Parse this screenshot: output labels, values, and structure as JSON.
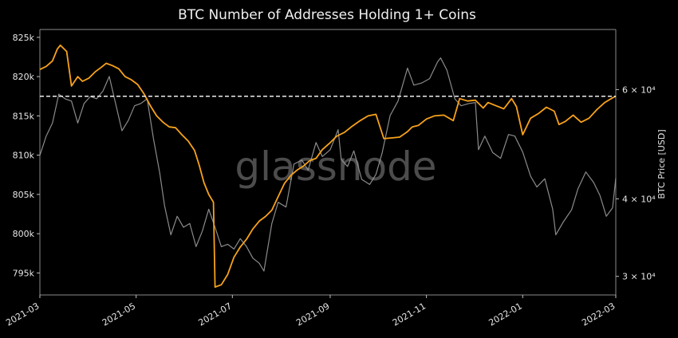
{
  "chart_data": {
    "type": "line",
    "title": "BTC Number of Addresses Holding 1+ Coins",
    "watermark": "glassnode",
    "xlabel": "",
    "ylabel_left": "",
    "ylabel_right": "BTC Price [USD]",
    "x_tick_labels": [
      "2021-03",
      "2021-05",
      "2021-07",
      "2021-09",
      "2021-11",
      "2022-01",
      "2022-03"
    ],
    "y_left_ticks": [
      {
        "value": 795000,
        "label": "795k"
      },
      {
        "value": 800000,
        "label": "800k"
      },
      {
        "value": 805000,
        "label": "805k"
      },
      {
        "value": 810000,
        "label": "810k"
      },
      {
        "value": 815000,
        "label": "815k"
      },
      {
        "value": 820000,
        "label": "820k"
      },
      {
        "value": 825000,
        "label": "825k"
      }
    ],
    "y_right_ticks": [
      {
        "value": 30000,
        "label": "3 × 10⁴"
      },
      {
        "value": 40000,
        "label": "4 × 10⁴"
      },
      {
        "value": 60000,
        "label": "6 × 10⁴"
      }
    ],
    "ylim_left": [
      792200,
      826000
    ],
    "ylim_right": [
      28000,
      75000
    ],
    "right_axis_scale": "log",
    "reference_line": {
      "value": 817500,
      "style": "dashed"
    },
    "colors": {
      "addresses": "#f7a21b",
      "price": "#9a9a9a",
      "background": "#000000",
      "text": "#e6e6e6"
    },
    "series": [
      {
        "name": "",
        "axis": "left",
        "x": [
          "2021-03-01",
          "2021-03-05",
          "2021-03-09",
          "2021-03-12",
          "2021-03-14",
          "2021-03-18",
          "2021-03-21",
          "2021-03-25",
          "2021-03-28",
          "2021-04-01",
          "2021-04-05",
          "2021-04-09",
          "2021-04-12",
          "2021-04-16",
          "2021-04-20",
          "2021-04-24",
          "2021-04-28",
          "2021-05-02",
          "2021-05-06",
          "2021-05-10",
          "2021-05-14",
          "2021-05-18",
          "2021-05-22",
          "2021-05-26",
          "2021-05-30",
          "2021-06-03",
          "2021-06-07",
          "2021-06-10",
          "2021-06-13",
          "2021-06-16",
          "2021-06-19",
          "2021-06-20",
          "2021-06-24",
          "2021-06-28",
          "2021-07-02",
          "2021-07-06",
          "2021-07-10",
          "2021-07-14",
          "2021-07-18",
          "2021-07-22",
          "2021-07-26",
          "2021-07-30",
          "2021-08-03",
          "2021-08-07",
          "2021-08-11",
          "2021-08-15",
          "2021-08-19",
          "2021-08-23",
          "2021-08-27",
          "2021-09-01",
          "2021-09-05",
          "2021-09-10",
          "2021-09-15",
          "2021-09-20",
          "2021-09-25",
          "2021-09-30",
          "2021-10-05",
          "2021-10-10",
          "2021-10-15",
          "2021-10-20",
          "2021-10-23",
          "2021-10-27",
          "2021-11-01",
          "2021-11-06",
          "2021-11-12",
          "2021-11-18",
          "2021-11-22",
          "2021-11-27",
          "2021-12-02",
          "2021-12-07",
          "2021-12-10",
          "2021-12-15",
          "2021-12-20",
          "2021-12-25",
          "2021-12-28",
          "2022-01-01",
          "2022-01-06",
          "2022-01-11",
          "2022-01-16",
          "2022-01-21",
          "2022-01-24",
          "2022-01-28",
          "2022-02-02",
          "2022-02-07",
          "2022-02-12",
          "2022-02-17",
          "2022-02-22",
          "2022-02-27",
          "2022-03-01"
        ],
        "values": [
          820900,
          821300,
          822000,
          823500,
          824000,
          823200,
          818800,
          820000,
          819400,
          819800,
          820600,
          821200,
          821700,
          821400,
          821000,
          820000,
          819600,
          819000,
          817800,
          816300,
          815000,
          814200,
          813600,
          813500,
          812600,
          811800,
          810600,
          808700,
          806500,
          805000,
          804000,
          793200,
          793500,
          794800,
          797000,
          798300,
          799300,
          800600,
          801600,
          802200,
          803000,
          804700,
          806400,
          807400,
          808100,
          808600,
          809300,
          809600,
          810700,
          811600,
          812400,
          812900,
          813700,
          814400,
          815000,
          815200,
          812100,
          812200,
          812300,
          813000,
          813600,
          813800,
          814600,
          815000,
          815100,
          814400,
          817200,
          816900,
          817000,
          816000,
          816700,
          816300,
          815900,
          817200,
          816200,
          812600,
          814700,
          815300,
          816100,
          815600,
          813900,
          814300,
          815100,
          814200,
          814700,
          815800,
          816700,
          817300,
          817500
        ]
      },
      {
        "name": "",
        "axis": "right",
        "x": [
          "2021-03-01",
          "2021-03-05",
          "2021-03-09",
          "2021-03-13",
          "2021-03-17",
          "2021-03-21",
          "2021-03-25",
          "2021-03-29",
          "2021-04-02",
          "2021-04-06",
          "2021-04-10",
          "2021-04-14",
          "2021-04-18",
          "2021-04-22",
          "2021-04-26",
          "2021-04-30",
          "2021-05-04",
          "2021-05-08",
          "2021-05-12",
          "2021-05-16",
          "2021-05-19",
          "2021-05-23",
          "2021-05-27",
          "2021-05-31",
          "2021-06-04",
          "2021-06-08",
          "2021-06-12",
          "2021-06-16",
          "2021-06-20",
          "2021-06-24",
          "2021-06-28",
          "2021-07-02",
          "2021-07-06",
          "2021-07-10",
          "2021-07-14",
          "2021-07-18",
          "2021-07-21",
          "2021-07-26",
          "2021-07-30",
          "2021-08-04",
          "2021-08-09",
          "2021-08-14",
          "2021-08-18",
          "2021-08-23",
          "2021-08-27",
          "2021-09-01",
          "2021-09-06",
          "2021-09-08",
          "2021-09-12",
          "2021-09-16",
          "2021-09-21",
          "2021-09-26",
          "2021-09-30",
          "2021-10-04",
          "2021-10-09",
          "2021-10-14",
          "2021-10-20",
          "2021-10-24",
          "2021-10-29",
          "2021-11-03",
          "2021-11-08",
          "2021-11-10",
          "2021-11-14",
          "2021-11-19",
          "2021-11-23",
          "2021-11-28",
          "2021-12-02",
          "2021-12-04",
          "2021-12-08",
          "2021-12-13",
          "2021-12-18",
          "2021-12-23",
          "2021-12-27",
          "2022-01-01",
          "2022-01-06",
          "2022-01-10",
          "2022-01-15",
          "2022-01-20",
          "2022-01-22",
          "2022-01-27",
          "2022-02-01",
          "2022-02-05",
          "2022-02-10",
          "2022-02-15",
          "2022-02-19",
          "2022-02-23",
          "2022-02-27",
          "2022-03-01"
        ],
        "values": [
          47000,
          50500,
          53000,
          59000,
          58000,
          57500,
          53000,
          57000,
          58500,
          58000,
          59700,
          63000,
          57000,
          51500,
          53500,
          56500,
          57000,
          58000,
          50000,
          44000,
          39000,
          35000,
          37500,
          36000,
          36500,
          33500,
          35500,
          38500,
          36000,
          33500,
          33800,
          33200,
          34500,
          33500,
          32100,
          31500,
          30600,
          36500,
          39500,
          38800,
          45500,
          46200,
          44500,
          49300,
          46800,
          48000,
          51700,
          46300,
          45100,
          47800,
          43000,
          42200,
          43800,
          47500,
          54500,
          57500,
          65000,
          61000,
          61500,
          62500,
          66500,
          67500,
          64500,
          58000,
          56500,
          57000,
          57200,
          48000,
          50500,
          47500,
          46500,
          50800,
          50500,
          47600,
          43500,
          41800,
          43100,
          38500,
          35000,
          36800,
          38400,
          41500,
          44200,
          42500,
          40500,
          37500,
          38700,
          43200
        ]
      }
    ]
  }
}
